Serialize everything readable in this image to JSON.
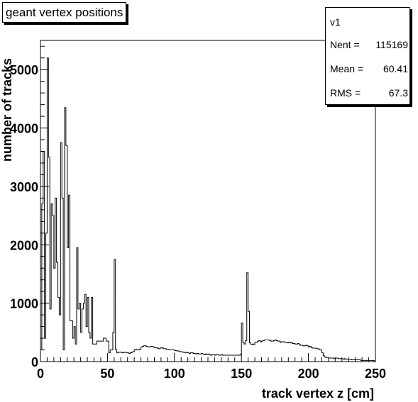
{
  "title": "geant vertex positions",
  "stats": {
    "name": "v1",
    "rows": [
      {
        "label": "Nent =",
        "value": "115169"
      },
      {
        "label": "Mean  =",
        "value": "60.41"
      },
      {
        "label": "RMS   =",
        "value": "67.3"
      }
    ]
  },
  "chart_data": {
    "type": "histogram",
    "title": "geant vertex positions",
    "xlabel": "track vertex z [cm]",
    "ylabel": "number of tracks",
    "xlim": [
      0,
      250
    ],
    "ylim": [
      0,
      5500
    ],
    "xticks": [
      0,
      50,
      100,
      150,
      200,
      250
    ],
    "yticks": [
      0,
      1000,
      2000,
      3000,
      4000,
      5000
    ],
    "bin_width": 1,
    "grid": false,
    "series": [
      {
        "values": [
          200,
          2700,
          3600,
          400,
          2200,
          5200,
          3500,
          900,
          2700,
          2500,
          1600,
          2800,
          1700,
          1100,
          800,
          3750,
          2800,
          200,
          4350,
          3700,
          1950,
          2850,
          700,
          700,
          400,
          600,
          300,
          1950,
          900,
          1000,
          500,
          900,
          1000,
          1150,
          600,
          1100,
          500,
          400,
          1100,
          300,
          300,
          300,
          350,
          350,
          350,
          350,
          350,
          400,
          400,
          350,
          350,
          150,
          200,
          200,
          500,
          1750,
          200,
          150,
          160,
          160,
          160,
          150,
          160,
          160,
          150,
          150,
          140,
          150,
          160,
          170,
          200,
          210,
          200,
          200,
          210,
          250,
          260,
          270,
          270,
          260,
          250,
          250,
          260,
          260,
          250,
          240,
          240,
          230,
          220,
          230,
          240,
          230,
          220,
          220,
          210,
          210,
          200,
          200,
          200,
          200,
          190,
          190,
          180,
          180,
          170,
          170,
          160,
          160,
          150,
          160,
          150,
          140,
          150,
          150,
          140,
          140,
          130,
          140,
          130,
          130,
          140,
          130,
          120,
          130,
          120,
          130,
          120,
          110,
          120,
          120,
          110,
          120,
          120,
          110,
          110,
          120,
          110,
          110,
          110,
          110,
          110,
          110,
          110,
          110,
          110,
          110,
          110,
          110,
          110,
          120,
          660,
          330,
          300,
          360,
          1520,
          860,
          320,
          290,
          300,
          290,
          330,
          330,
          350,
          360,
          340,
          350,
          360,
          370,
          370,
          370,
          370,
          360,
          350,
          350,
          360,
          370,
          360,
          350,
          350,
          330,
          340,
          340,
          330,
          330,
          320,
          330,
          320,
          330,
          310,
          310,
          300,
          300,
          310,
          290,
          280,
          280,
          270,
          270,
          280,
          270,
          250,
          260,
          240,
          230,
          230,
          230,
          220,
          220,
          200,
          200,
          150,
          100,
          80,
          70,
          70,
          60,
          60,
          60,
          60,
          50,
          60,
          60,
          50,
          50,
          50,
          50,
          40,
          50,
          40,
          40,
          40,
          40,
          30,
          30,
          30,
          30,
          30,
          30,
          30,
          20,
          20,
          20,
          20,
          20,
          20,
          20,
          20,
          20,
          20,
          10
        ]
      }
    ]
  }
}
